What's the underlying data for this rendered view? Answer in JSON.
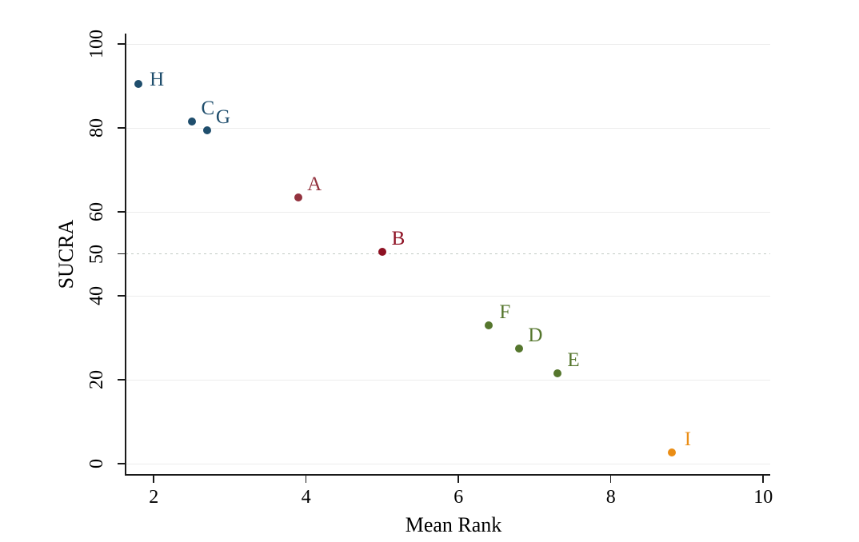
{
  "chart_data": {
    "type": "scatter",
    "title": "",
    "xlabel": "Mean Rank",
    "ylabel": "SUCRA",
    "xlim": [
      1.6,
      10.1
    ],
    "ylim": [
      -2.5,
      102.5
    ],
    "x_ticks": [
      2,
      4,
      6,
      8,
      10
    ],
    "y_ticks": [
      0,
      20,
      40,
      50,
      60,
      80,
      100
    ],
    "gridlines_y": [
      0,
      20,
      40,
      60,
      80,
      100
    ],
    "grid": true,
    "legend": null,
    "reference_line": {
      "y": 50,
      "style": "dashed",
      "color": "#c2cbc4"
    },
    "points": [
      {
        "label": "A",
        "x": 3.9,
        "y": 63.5,
        "color": "#93323e"
      },
      {
        "label": "B",
        "x": 5.0,
        "y": 50.5,
        "color": "#8e1123"
      },
      {
        "label": "C",
        "x": 2.5,
        "y": 81.5,
        "color": "#1f4e6d"
      },
      {
        "label": "D",
        "x": 6.8,
        "y": 27.5,
        "color": "#55762d"
      },
      {
        "label": "E",
        "x": 7.3,
        "y": 21.5,
        "color": "#55762d"
      },
      {
        "label": "F",
        "x": 6.4,
        "y": 33.0,
        "color": "#55762d"
      },
      {
        "label": "G",
        "x": 2.7,
        "y": 79.5,
        "color": "#1f4e6d"
      },
      {
        "label": "H",
        "x": 1.8,
        "y": 90.5,
        "color": "#1f4e6d"
      },
      {
        "label": "I",
        "x": 8.8,
        "y": 2.7,
        "color": "#ea8d15"
      }
    ]
  },
  "colors": {
    "background": "#ffffff",
    "axis": "#1a1a1a",
    "gridline": "#ececec",
    "reference_dashed": "#c2cbc4",
    "group_blue": "#1f4e6d",
    "group_red": "#8e1123",
    "group_green": "#55762d",
    "group_orange": "#ea8d15"
  }
}
